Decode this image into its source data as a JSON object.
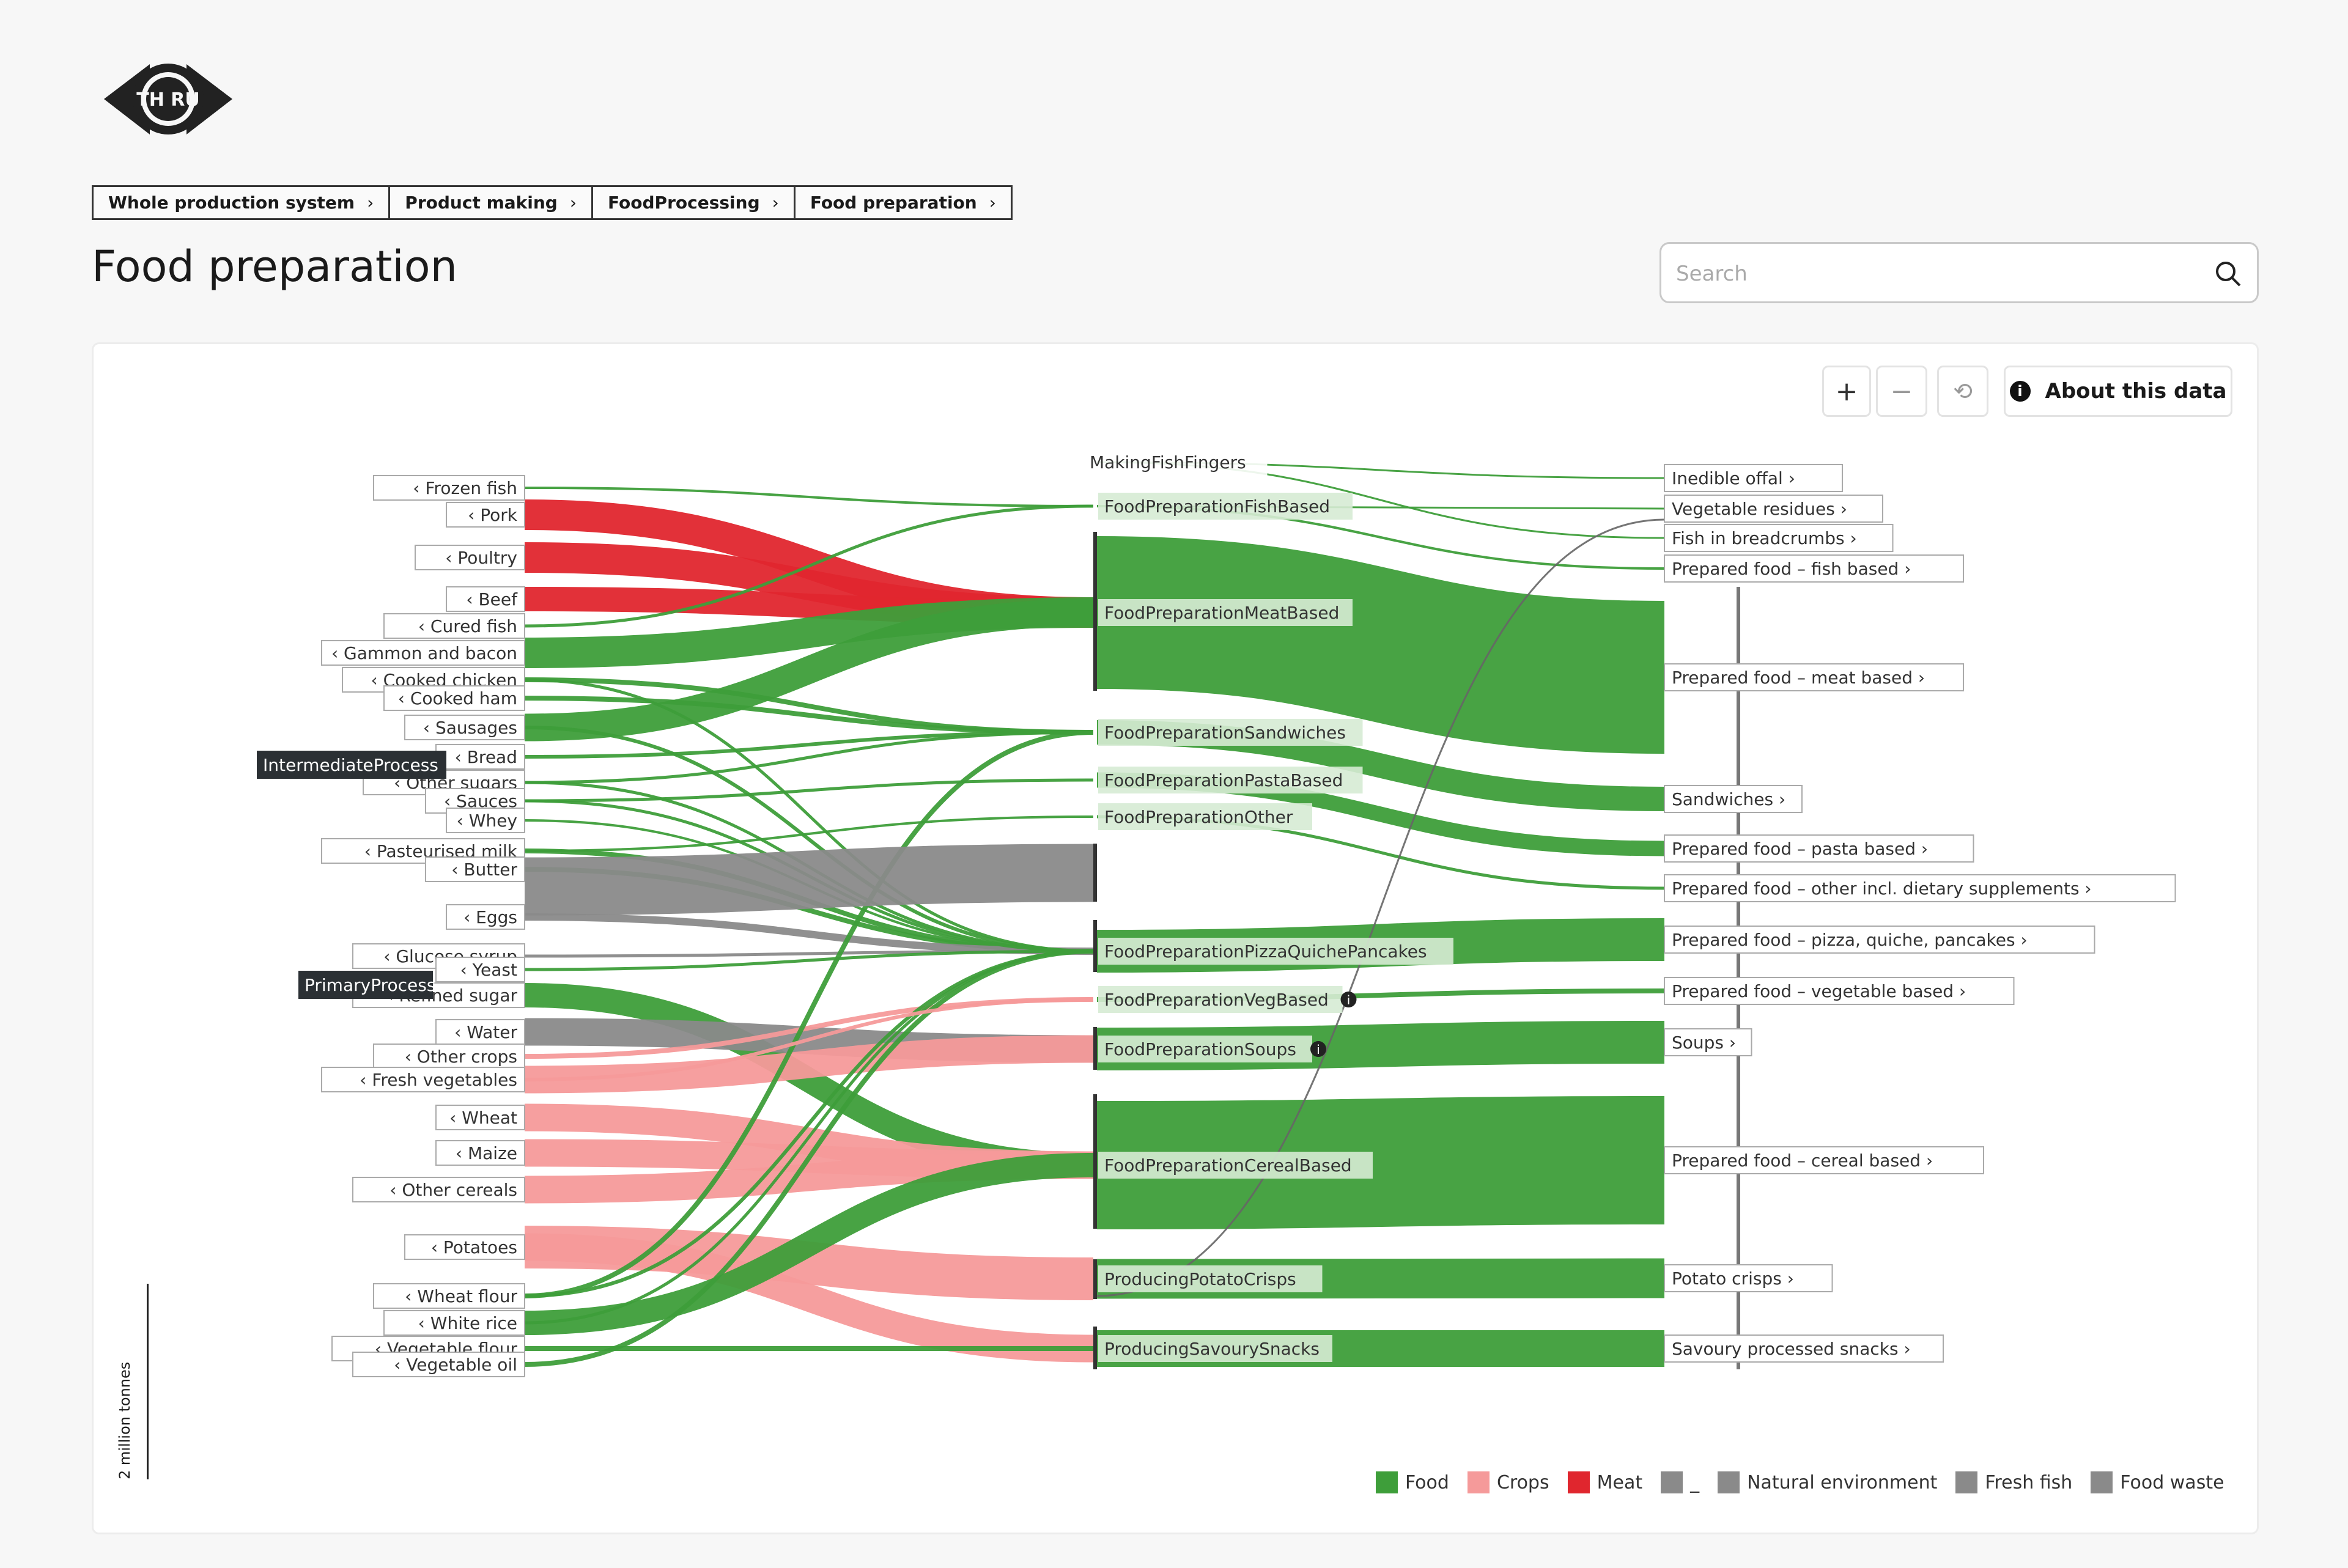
{
  "breadcrumbs": [
    "Whole production system",
    "Product making",
    "FoodProcessing",
    "Food preparation"
  ],
  "page_title": "Food preparation",
  "search": {
    "placeholder": "Search"
  },
  "controls": {
    "zoom_in": "+",
    "zoom_out": "−",
    "reset": "⟲",
    "about_label": "About this data"
  },
  "scale_label": "2 million tonnes",
  "colors": {
    "Food": "#3e9e3a",
    "Crops": "#f59a9a",
    "Meat": "#e0262e",
    "Other": "#8a8a8a"
  },
  "legend": [
    {
      "label": "Food",
      "color": "#3e9e3a"
    },
    {
      "label": "Crops",
      "color": "#f59a9a"
    },
    {
      "label": "Meat",
      "color": "#e0262e"
    },
    {
      "label": "_",
      "color": "#8a8a8a"
    },
    {
      "label": "Natural environment",
      "color": "#8a8a8a"
    },
    {
      "label": "Fresh fish",
      "color": "#8a8a8a"
    },
    {
      "label": "Food waste",
      "color": "#8a8a8a"
    }
  ],
  "sources": [
    "Frozen fish",
    "Pork",
    "Poultry",
    "Beef",
    "Cured fish",
    "Gammon and bacon",
    "Cooked chicken",
    "Cooked ham",
    "Sausages",
    "Bread",
    "Other sugars",
    "Sauces",
    "Whey",
    "Pasteurised milk",
    "Butter",
    "Eggs",
    "Glucose syrup",
    "Yeast",
    "Refined sugar",
    "Water",
    "Other crops",
    "Fresh vegetables",
    "Wheat",
    "Maize",
    "Other cereals",
    "Potatoes",
    "Wheat flour",
    "White rice",
    "Vegetable flour",
    "Vegetable oil"
  ],
  "group_labels": [
    "IntermediateProcess",
    "PrimaryProcess"
  ],
  "processes": [
    {
      "name": "MakingFishFingers",
      "info": false
    },
    {
      "name": "FoodPreparationFishBased",
      "info": false
    },
    {
      "name": "FoodPreparationMeatBased",
      "info": false
    },
    {
      "name": "FoodPreparationSandwiches",
      "info": false
    },
    {
      "name": "FoodPreparationPastaBased",
      "info": false
    },
    {
      "name": "FoodPreparationOther",
      "info": false
    },
    {
      "name": "FoodPreparationPizzaQuichePancakes",
      "info": false
    },
    {
      "name": "FoodPreparationVegBased",
      "info": true
    },
    {
      "name": "FoodPreparationSoups",
      "info": true
    },
    {
      "name": "FoodPreparationCerealBased",
      "info": false
    },
    {
      "name": "ProducingPotatoCrisps",
      "info": false
    },
    {
      "name": "ProducingSavourySnacks",
      "info": false
    }
  ],
  "outputs": [
    "Inedible offal",
    "Vegetable residues",
    "Fish in breadcrumbs",
    "Prepared food – fish based",
    "Prepared food – meat based",
    "Sandwiches",
    "Prepared food – pasta based",
    "Prepared food – other incl. dietary supplements",
    "Prepared food – pizza, quiche, pancakes",
    "Prepared food – vegetable based",
    "Soups",
    "Prepared food – cereal based",
    "Potato crisps",
    "Savoury processed snacks"
  ]
}
